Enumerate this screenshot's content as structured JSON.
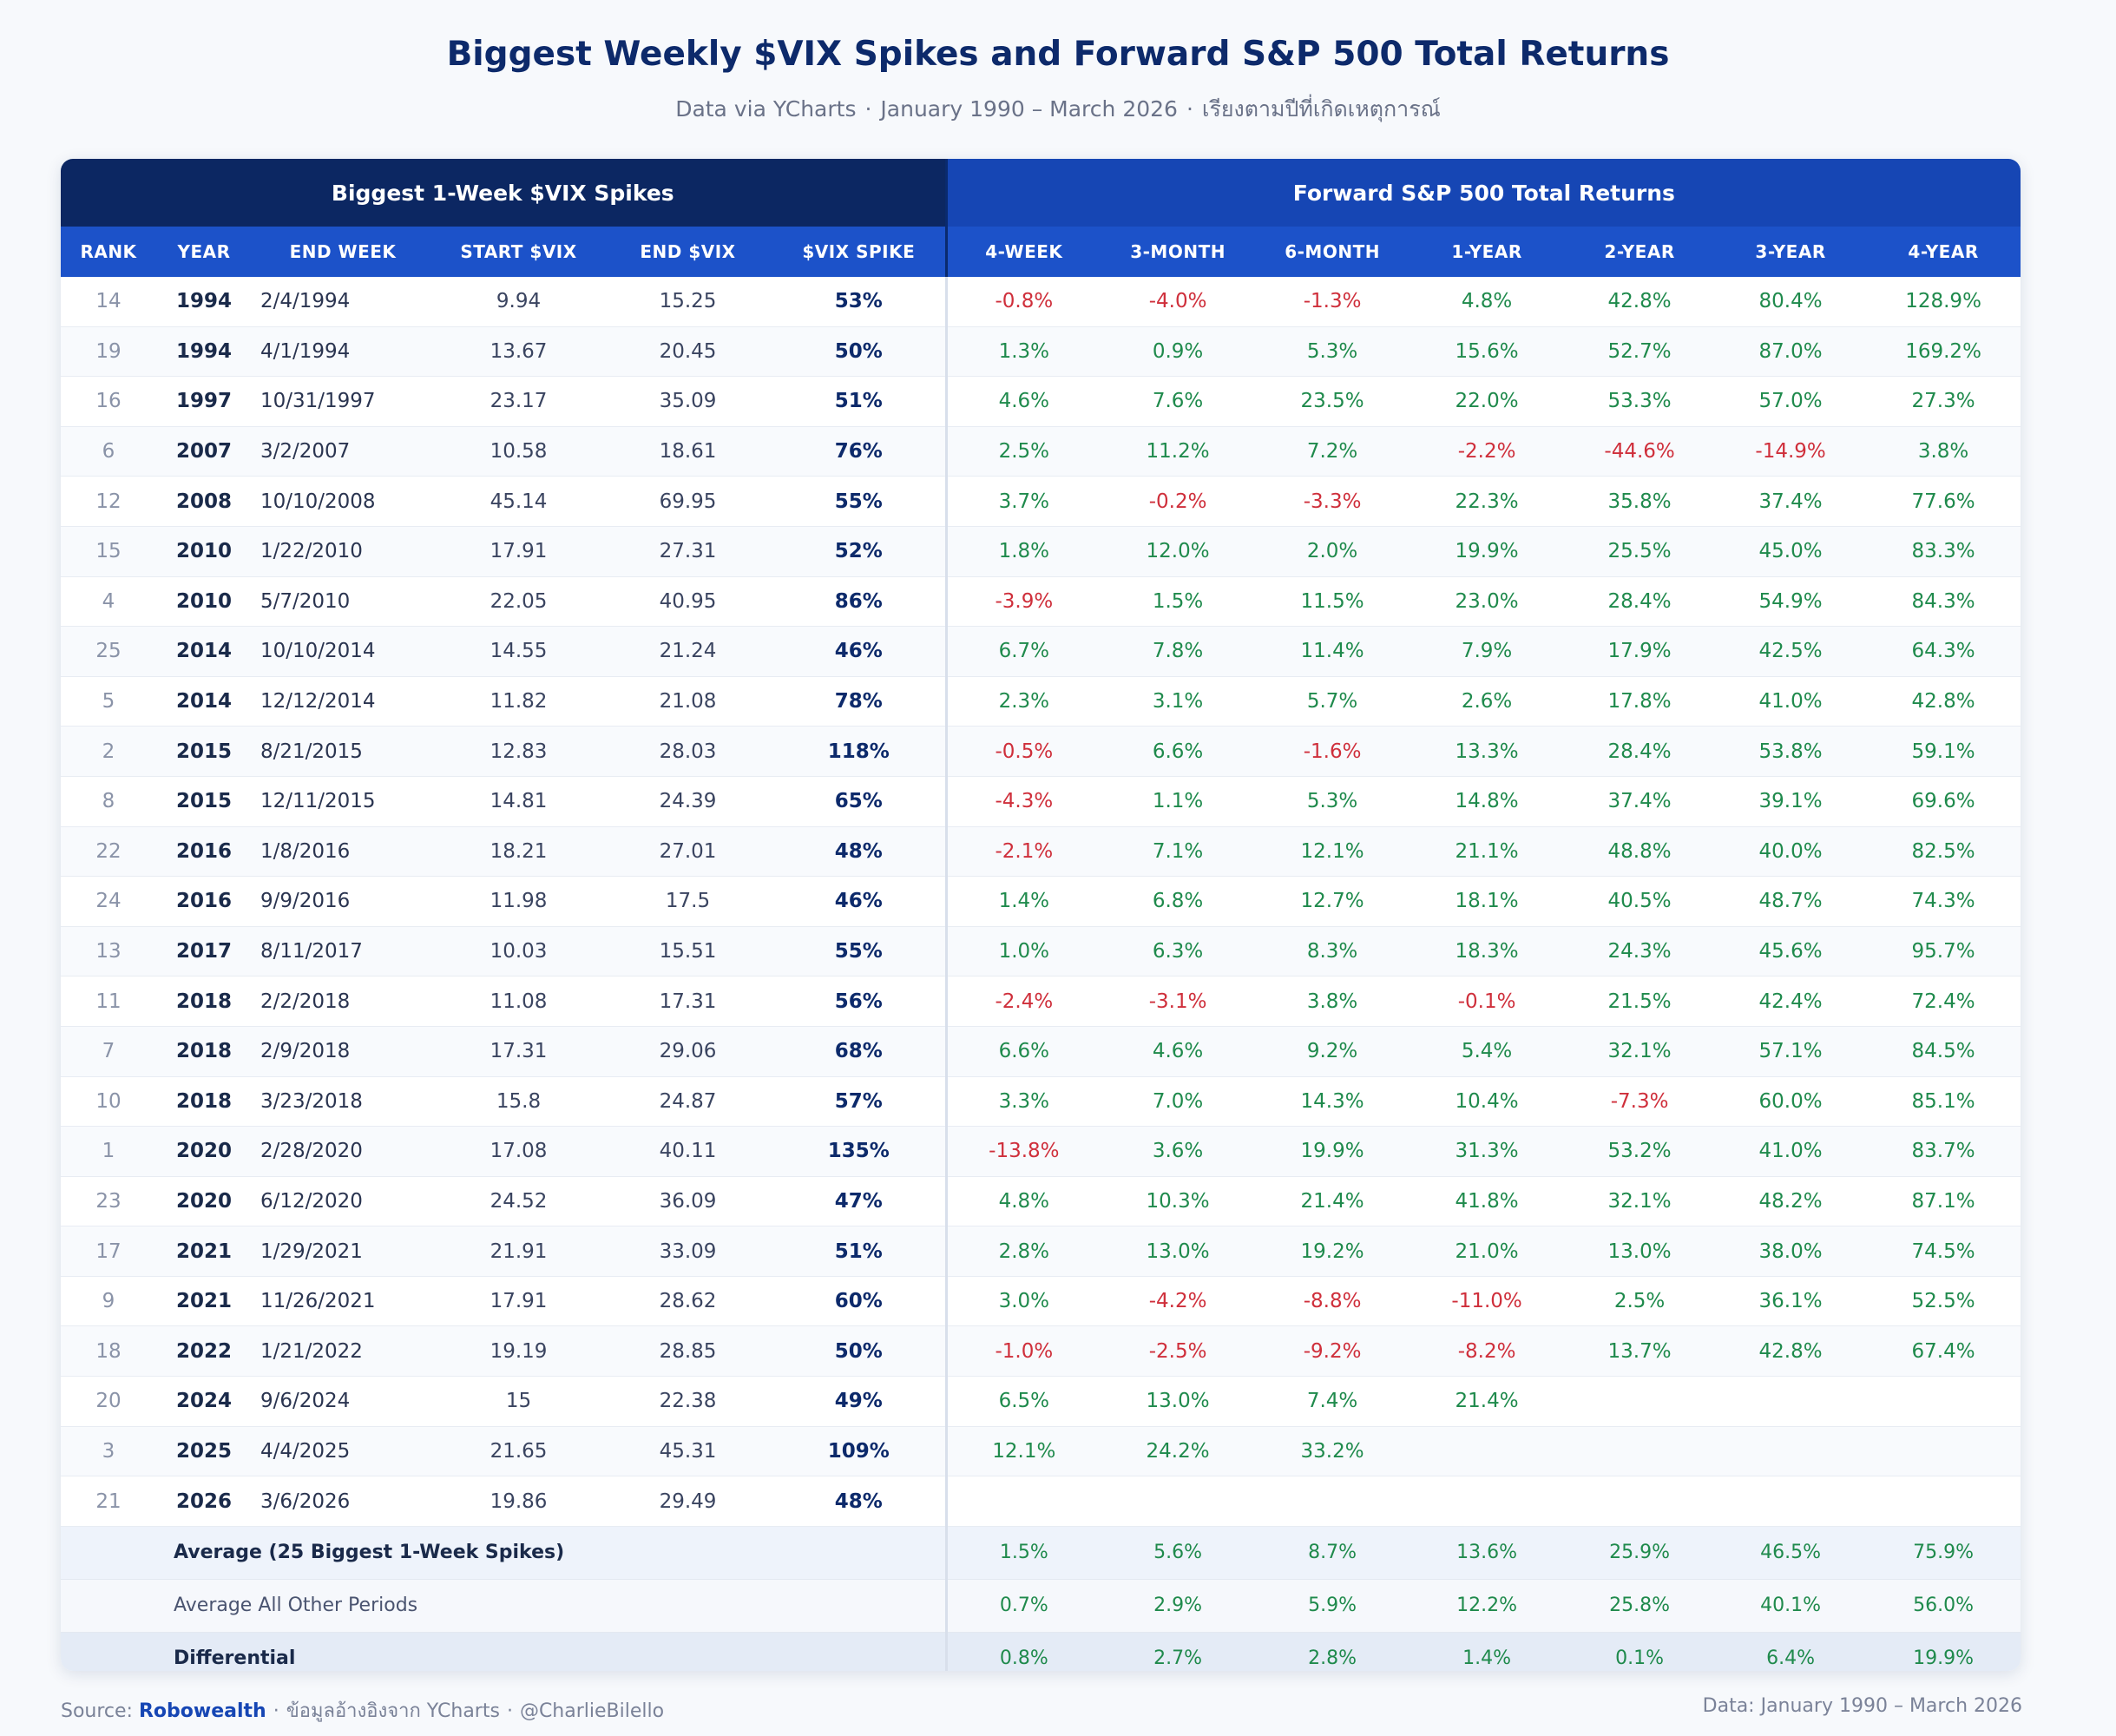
{
  "title": "Biggest Weekly $VIX Spikes and Forward S&P 500 Total Returns",
  "subtitle": {
    "source": "Data via YCharts",
    "range": "January 1990 – March 2026",
    "sort_note": "เรียงตามปีที่เกิดเหตุการณ์",
    "separator": "·"
  },
  "table": {
    "group_left": "Biggest 1-Week $VIX Spikes",
    "group_right": "Forward S&P 500 Total Returns",
    "columns": [
      "RANK",
      "YEAR",
      "END WEEK",
      "START $VIX",
      "END $VIX",
      "$VIX SPIKE",
      "4-WEEK",
      "3-MONTH",
      "6-MONTH",
      "1-YEAR",
      "2-YEAR",
      "3-YEAR",
      "4-YEAR"
    ],
    "rows": [
      {
        "rank": "14",
        "year": "1994",
        "end_week": "2/4/1994",
        "start_vix": "9.94",
        "end_vix": "15.25",
        "spike": "53%",
        "returns": [
          "-0.8%",
          "-4.0%",
          "-1.3%",
          "4.8%",
          "42.8%",
          "80.4%",
          "128.9%"
        ]
      },
      {
        "rank": "19",
        "year": "1994",
        "end_week": "4/1/1994",
        "start_vix": "13.67",
        "end_vix": "20.45",
        "spike": "50%",
        "returns": [
          "1.3%",
          "0.9%",
          "5.3%",
          "15.6%",
          "52.7%",
          "87.0%",
          "169.2%"
        ]
      },
      {
        "rank": "16",
        "year": "1997",
        "end_week": "10/31/1997",
        "start_vix": "23.17",
        "end_vix": "35.09",
        "spike": "51%",
        "returns": [
          "4.6%",
          "7.6%",
          "23.5%",
          "22.0%",
          "53.3%",
          "57.0%",
          "27.3%"
        ]
      },
      {
        "rank": "6",
        "year": "2007",
        "end_week": "3/2/2007",
        "start_vix": "10.58",
        "end_vix": "18.61",
        "spike": "76%",
        "returns": [
          "2.5%",
          "11.2%",
          "7.2%",
          "-2.2%",
          "-44.6%",
          "-14.9%",
          "3.8%"
        ]
      },
      {
        "rank": "12",
        "year": "2008",
        "end_week": "10/10/2008",
        "start_vix": "45.14",
        "end_vix": "69.95",
        "spike": "55%",
        "returns": [
          "3.7%",
          "-0.2%",
          "-3.3%",
          "22.3%",
          "35.8%",
          "37.4%",
          "77.6%"
        ]
      },
      {
        "rank": "15",
        "year": "2010",
        "end_week": "1/22/2010",
        "start_vix": "17.91",
        "end_vix": "27.31",
        "spike": "52%",
        "returns": [
          "1.8%",
          "12.0%",
          "2.0%",
          "19.9%",
          "25.5%",
          "45.0%",
          "83.3%"
        ]
      },
      {
        "rank": "4",
        "year": "2010",
        "end_week": "5/7/2010",
        "start_vix": "22.05",
        "end_vix": "40.95",
        "spike": "86%",
        "returns": [
          "-3.9%",
          "1.5%",
          "11.5%",
          "23.0%",
          "28.4%",
          "54.9%",
          "84.3%"
        ]
      },
      {
        "rank": "25",
        "year": "2014",
        "end_week": "10/10/2014",
        "start_vix": "14.55",
        "end_vix": "21.24",
        "spike": "46%",
        "returns": [
          "6.7%",
          "7.8%",
          "11.4%",
          "7.9%",
          "17.9%",
          "42.5%",
          "64.3%"
        ]
      },
      {
        "rank": "5",
        "year": "2014",
        "end_week": "12/12/2014",
        "start_vix": "11.82",
        "end_vix": "21.08",
        "spike": "78%",
        "returns": [
          "2.3%",
          "3.1%",
          "5.7%",
          "2.6%",
          "17.8%",
          "41.0%",
          "42.8%"
        ]
      },
      {
        "rank": "2",
        "year": "2015",
        "end_week": "8/21/2015",
        "start_vix": "12.83",
        "end_vix": "28.03",
        "spike": "118%",
        "returns": [
          "-0.5%",
          "6.6%",
          "-1.6%",
          "13.3%",
          "28.4%",
          "53.8%",
          "59.1%"
        ]
      },
      {
        "rank": "8",
        "year": "2015",
        "end_week": "12/11/2015",
        "start_vix": "14.81",
        "end_vix": "24.39",
        "spike": "65%",
        "returns": [
          "-4.3%",
          "1.1%",
          "5.3%",
          "14.8%",
          "37.4%",
          "39.1%",
          "69.6%"
        ]
      },
      {
        "rank": "22",
        "year": "2016",
        "end_week": "1/8/2016",
        "start_vix": "18.21",
        "end_vix": "27.01",
        "spike": "48%",
        "returns": [
          "-2.1%",
          "7.1%",
          "12.1%",
          "21.1%",
          "48.8%",
          "40.0%",
          "82.5%"
        ]
      },
      {
        "rank": "24",
        "year": "2016",
        "end_week": "9/9/2016",
        "start_vix": "11.98",
        "end_vix": "17.5",
        "spike": "46%",
        "returns": [
          "1.4%",
          "6.8%",
          "12.7%",
          "18.1%",
          "40.5%",
          "48.7%",
          "74.3%"
        ]
      },
      {
        "rank": "13",
        "year": "2017",
        "end_week": "8/11/2017",
        "start_vix": "10.03",
        "end_vix": "15.51",
        "spike": "55%",
        "returns": [
          "1.0%",
          "6.3%",
          "8.3%",
          "18.3%",
          "24.3%",
          "45.6%",
          "95.7%"
        ]
      },
      {
        "rank": "11",
        "year": "2018",
        "end_week": "2/2/2018",
        "start_vix": "11.08",
        "end_vix": "17.31",
        "spike": "56%",
        "returns": [
          "-2.4%",
          "-3.1%",
          "3.8%",
          "-0.1%",
          "21.5%",
          "42.4%",
          "72.4%"
        ]
      },
      {
        "rank": "7",
        "year": "2018",
        "end_week": "2/9/2018",
        "start_vix": "17.31",
        "end_vix": "29.06",
        "spike": "68%",
        "returns": [
          "6.6%",
          "4.6%",
          "9.2%",
          "5.4%",
          "32.1%",
          "57.1%",
          "84.5%"
        ]
      },
      {
        "rank": "10",
        "year": "2018",
        "end_week": "3/23/2018",
        "start_vix": "15.8",
        "end_vix": "24.87",
        "spike": "57%",
        "returns": [
          "3.3%",
          "7.0%",
          "14.3%",
          "10.4%",
          "-7.3%",
          "60.0%",
          "85.1%"
        ]
      },
      {
        "rank": "1",
        "year": "2020",
        "end_week": "2/28/2020",
        "start_vix": "17.08",
        "end_vix": "40.11",
        "spike": "135%",
        "returns": [
          "-13.8%",
          "3.6%",
          "19.9%",
          "31.3%",
          "53.2%",
          "41.0%",
          "83.7%"
        ]
      },
      {
        "rank": "23",
        "year": "2020",
        "end_week": "6/12/2020",
        "start_vix": "24.52",
        "end_vix": "36.09",
        "spike": "47%",
        "returns": [
          "4.8%",
          "10.3%",
          "21.4%",
          "41.8%",
          "32.1%",
          "48.2%",
          "87.1%"
        ]
      },
      {
        "rank": "17",
        "year": "2021",
        "end_week": "1/29/2021",
        "start_vix": "21.91",
        "end_vix": "33.09",
        "spike": "51%",
        "returns": [
          "2.8%",
          "13.0%",
          "19.2%",
          "21.0%",
          "13.0%",
          "38.0%",
          "74.5%"
        ]
      },
      {
        "rank": "9",
        "year": "2021",
        "end_week": "11/26/2021",
        "start_vix": "17.91",
        "end_vix": "28.62",
        "spike": "60%",
        "returns": [
          "3.0%",
          "-4.2%",
          "-8.8%",
          "-11.0%",
          "2.5%",
          "36.1%",
          "52.5%"
        ]
      },
      {
        "rank": "18",
        "year": "2022",
        "end_week": "1/21/2022",
        "start_vix": "19.19",
        "end_vix": "28.85",
        "spike": "50%",
        "returns": [
          "-1.0%",
          "-2.5%",
          "-9.2%",
          "-8.2%",
          "13.7%",
          "42.8%",
          "67.4%"
        ]
      },
      {
        "rank": "20",
        "year": "2024",
        "end_week": "9/6/2024",
        "start_vix": "15",
        "end_vix": "22.38",
        "spike": "49%",
        "returns": [
          "6.5%",
          "13.0%",
          "7.4%",
          "21.4%",
          "",
          "",
          ""
        ]
      },
      {
        "rank": "3",
        "year": "2025",
        "end_week": "4/4/2025",
        "start_vix": "21.65",
        "end_vix": "45.31",
        "spike": "109%",
        "returns": [
          "12.1%",
          "24.2%",
          "33.2%",
          "",
          "",
          "",
          ""
        ]
      },
      {
        "rank": "21",
        "year": "2026",
        "end_week": "3/6/2026",
        "start_vix": "19.86",
        "end_vix": "29.49",
        "spike": "48%",
        "returns": [
          "",
          "",
          "",
          "",
          "",
          "",
          ""
        ]
      }
    ],
    "summary": [
      {
        "label": "Average (25 Biggest 1-Week Spikes)",
        "values": [
          "1.5%",
          "5.6%",
          "8.7%",
          "13.6%",
          "25.9%",
          "46.5%",
          "75.9%"
        ]
      },
      {
        "label": "Average All Other Periods",
        "values": [
          "0.7%",
          "2.9%",
          "5.9%",
          "12.2%",
          "25.8%",
          "40.1%",
          "56.0%"
        ]
      },
      {
        "label": "Differential",
        "values": [
          "0.8%",
          "2.7%",
          "2.8%",
          "1.4%",
          "0.1%",
          "6.4%",
          "19.9%"
        ]
      }
    ]
  },
  "footer": {
    "source_label": "Source:",
    "brand": "Robowealth",
    "thai_note": "ข้อมูลอ้างอิงจาก YCharts",
    "handle": "@CharlieBilello",
    "separator": "·",
    "data_range": "Data: January 1990 – March 2026"
  },
  "colors": {
    "positive": "#1f8a4c",
    "negative": "#cf2f3b",
    "header_dark": "#0c2762",
    "header_blue": "#1646b4"
  }
}
